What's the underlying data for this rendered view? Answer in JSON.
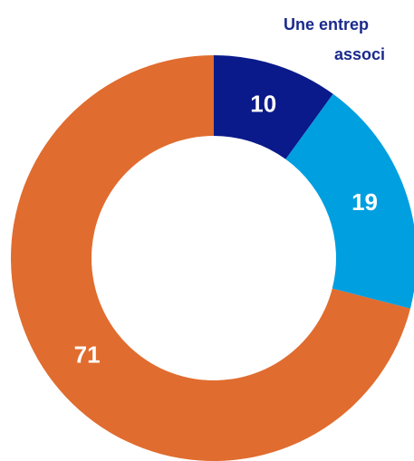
{
  "chart_data": {
    "type": "donut",
    "annotations": [
      "Une entrep",
      "associ"
    ],
    "categories": [
      null,
      null,
      null
    ],
    "values": [
      10,
      19,
      71
    ],
    "colors": [
      "#0a1a8a",
      "#009fe0",
      "#e06c2f"
    ]
  }
}
